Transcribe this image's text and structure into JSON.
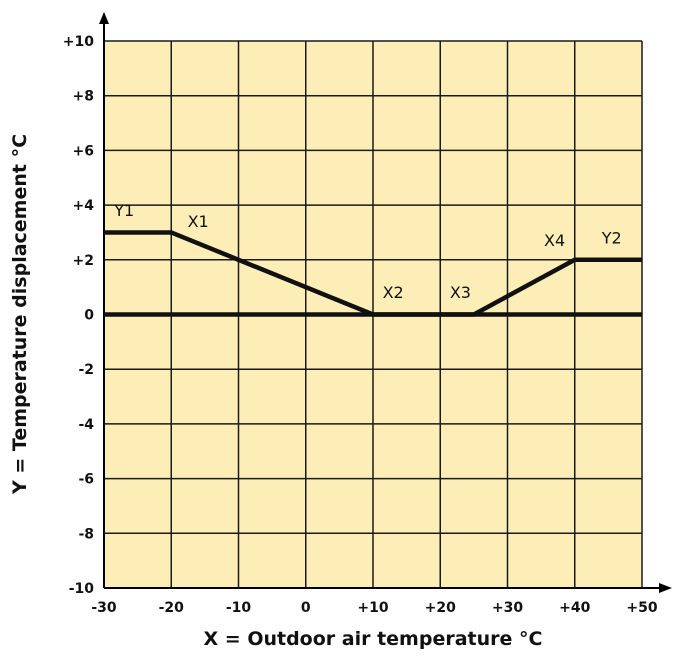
{
  "chart_data": {
    "type": "line",
    "xlabel": "X = Outdoor air temperature °C",
    "ylabel": "Y = Temperature displacement  °C",
    "xlim": [
      -30,
      50
    ],
    "ylim": [
      -10,
      10
    ],
    "x_ticks": [
      {
        "value": -30,
        "label": "-30"
      },
      {
        "value": -20,
        "label": "-20"
      },
      {
        "value": -10,
        "label": "-10"
      },
      {
        "value": 0,
        "label": "0"
      },
      {
        "value": 10,
        "label": "+10"
      },
      {
        "value": 20,
        "label": "+20"
      },
      {
        "value": 30,
        "label": "+30"
      },
      {
        "value": 40,
        "label": "+40"
      },
      {
        "value": 50,
        "label": "+50"
      }
    ],
    "y_ticks": [
      {
        "value": 10,
        "label": "+10"
      },
      {
        "value": 8,
        "label": "+8"
      },
      {
        "value": 6,
        "label": "+6"
      },
      {
        "value": 4,
        "label": "+4"
      },
      {
        "value": 2,
        "label": "+2"
      },
      {
        "value": 0,
        "label": "0"
      },
      {
        "value": -2,
        "label": "-2"
      },
      {
        "value": -4,
        "label": "-4"
      },
      {
        "value": -6,
        "label": "-6"
      },
      {
        "value": -8,
        "label": "-8"
      },
      {
        "value": -10,
        "label": "-10"
      }
    ],
    "grid": true,
    "series": [
      {
        "x": [
          -30,
          -20,
          10,
          25,
          40,
          50
        ],
        "y": [
          3,
          3,
          0,
          0,
          2,
          2
        ]
      }
    ],
    "reference_lines": [
      {
        "orientation": "horizontal",
        "y": 0
      }
    ],
    "annotations": [
      {
        "text": "Y1",
        "x": -27,
        "y": 3.6
      },
      {
        "text": "X1",
        "x": -16,
        "y": 3.2
      },
      {
        "text": "X2",
        "x": 13,
        "y": 0.6
      },
      {
        "text": "X3",
        "x": 23,
        "y": 0.6
      },
      {
        "text": "X4",
        "x": 37,
        "y": 2.5
      },
      {
        "text": "Y2",
        "x": 45.5,
        "y": 2.6
      }
    ],
    "colors": {
      "plot_background": "#fdeeb8",
      "grid": "#1a1a1a",
      "line": "#111111"
    }
  }
}
